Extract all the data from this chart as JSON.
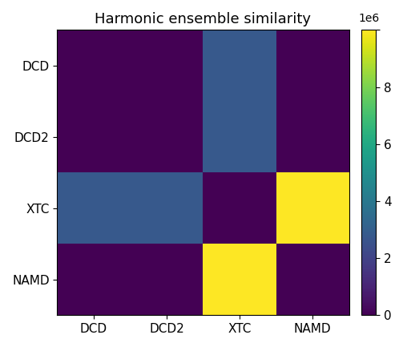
{
  "labels": [
    "DCD",
    "DCD2",
    "XTC",
    "NAMD"
  ],
  "matrix": [
    [
      0,
      0,
      2800000,
      0
    ],
    [
      0,
      0,
      2800000,
      0
    ],
    [
      2800000,
      2800000,
      0,
      10000000
    ],
    [
      0,
      0,
      10000000,
      0
    ]
  ],
  "title": "Harmonic ensemble similarity",
  "cmap": "viridis",
  "vmin": 0,
  "vmax": 10000000,
  "title_fontsize": 13,
  "tick_fontsize": 11,
  "cbar_ticks": [
    0,
    2000000,
    4000000,
    6000000,
    8000000,
    10000000
  ],
  "cbar_ticklabels": [
    "0",
    "2",
    "4",
    "6",
    "8",
    ""
  ]
}
